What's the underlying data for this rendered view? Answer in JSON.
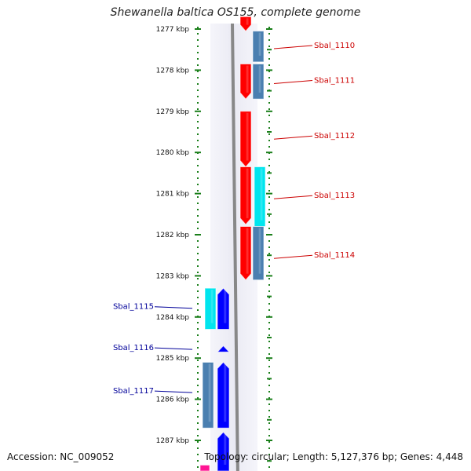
{
  "title": "Shewanella baltica OS155, complete genome",
  "accession": "Accession: NC_009052",
  "summary": "Topology: circular; Length: 5,127,376 bp; Genes: 4,448",
  "colors": {
    "forward": "#ff0000",
    "reverse": "#0000ff",
    "cyan": "#00e5ee",
    "steel": "#4a7fb0",
    "magenta": "#ff1493",
    "axis": "#1a7f1a",
    "label_forward": "#cc0000",
    "label_reverse": "#000099"
  },
  "scale": {
    "unit": "kbp",
    "ticks": [
      {
        "kbp": 1277,
        "label": "1277 kbp"
      },
      {
        "kbp": 1278,
        "label": "1278 kbp"
      },
      {
        "kbp": 1279,
        "label": "1279 kbp"
      },
      {
        "kbp": 1280,
        "label": "1280 kbp"
      },
      {
        "kbp": 1281,
        "label": "1281 kbp"
      },
      {
        "kbp": 1282,
        "label": "1282 kbp"
      },
      {
        "kbp": 1283,
        "label": "1283 kbp"
      },
      {
        "kbp": 1284,
        "label": "1284 kbp"
      },
      {
        "kbp": 1285,
        "label": "1285 kbp"
      },
      {
        "kbp": 1286,
        "label": "1286 kbp"
      },
      {
        "kbp": 1287,
        "label": "1287 kbp"
      }
    ]
  },
  "genes": [
    {
      "label": "Sbal_1110",
      "strand": "+",
      "start": 1276.7,
      "end": 1277.05,
      "lane": "red",
      "color": "forward",
      "label_kbp": 1277.4
    },
    {
      "label": "",
      "strand": "+",
      "start": 1277.05,
      "end": 1277.8,
      "lane": "steel",
      "color": "steel"
    },
    {
      "label": "Sbal_1111",
      "strand": "+",
      "start": 1277.85,
      "end": 1278.7,
      "lane": "red",
      "color": "forward",
      "label_kbp": 1278.25
    },
    {
      "label": "",
      "strand": "+",
      "start": 1277.85,
      "end": 1278.7,
      "lane": "steel",
      "color": "steel"
    },
    {
      "label": "Sbal_1112",
      "strand": "+",
      "start": 1279.0,
      "end": 1280.35,
      "lane": "red",
      "color": "forward",
      "label_kbp": 1279.6
    },
    {
      "label": "Sbal_1113",
      "strand": "+",
      "start": 1280.35,
      "end": 1281.75,
      "lane": "red",
      "color": "forward",
      "label_kbp": 1281.05
    },
    {
      "label": "",
      "strand": "+",
      "start": 1280.35,
      "end": 1281.8,
      "lane": "cyan",
      "color": "cyan"
    },
    {
      "label": "Sbal_1114",
      "strand": "+",
      "start": 1281.8,
      "end": 1283.1,
      "lane": "red",
      "color": "forward",
      "label_kbp": 1282.5
    },
    {
      "label": "",
      "strand": "+",
      "start": 1281.8,
      "end": 1283.1,
      "lane": "steel",
      "color": "steel"
    },
    {
      "label": "Sbal_1115",
      "strand": "-",
      "start": 1283.3,
      "end": 1284.3,
      "lane": "blue",
      "color": "reverse",
      "label_kbp": 1283.75
    },
    {
      "label": "",
      "strand": "-",
      "start": 1283.3,
      "end": 1284.3,
      "lane": "cyan_rev",
      "color": "cyan"
    },
    {
      "label": "Sbal_1116",
      "strand": "-",
      "start": 1284.7,
      "end": 1284.85,
      "lane": "blue",
      "color": "reverse",
      "label_kbp": 1284.75
    },
    {
      "label": "Sbal_1117",
      "strand": "-",
      "start": 1285.1,
      "end": 1286.7,
      "lane": "blue",
      "color": "reverse",
      "label_kbp": 1285.8
    },
    {
      "label": "",
      "strand": "-",
      "start": 1285.1,
      "end": 1286.7,
      "lane": "steel_rev",
      "color": "steel"
    },
    {
      "label": "",
      "strand": "-",
      "start": 1286.8,
      "end": 1287.8,
      "lane": "blue",
      "color": "reverse"
    },
    {
      "label": "",
      "strand": "-",
      "start": 1287.6,
      "end": 1287.8,
      "lane": "magenta",
      "color": "magenta"
    }
  ]
}
